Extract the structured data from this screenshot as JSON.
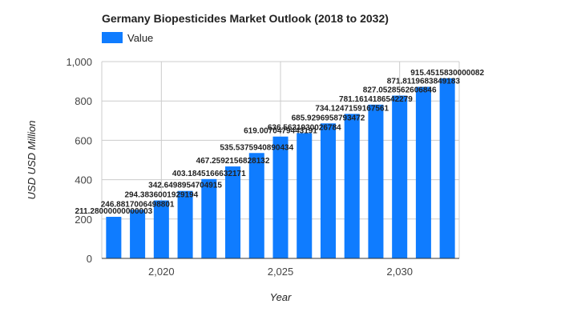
{
  "chart_data": {
    "type": "bar",
    "title": "Germany Biopesticides Market Outlook (2018 to 2032)",
    "xlabel": "Year",
    "ylabel": "USD USD Million",
    "legend": {
      "position": "top-left",
      "entries": [
        "Value"
      ]
    },
    "grid": true,
    "ylim": [
      0,
      1000
    ],
    "yticks": [
      "0",
      "200",
      "400",
      "600",
      "800",
      "1,000"
    ],
    "yticks_values": [
      0,
      200,
      400,
      600,
      800,
      1000
    ],
    "xticks": [
      "2,020",
      "2,025",
      "2,030"
    ],
    "xticks_values": [
      2020,
      2025,
      2030
    ],
    "series": [
      {
        "name": "Value",
        "color": "#0f7cff",
        "x": [
          2018,
          2019,
          2020,
          2021,
          2022,
          2023,
          2024,
          2025,
          2026,
          2027,
          2028,
          2029,
          2030,
          2031,
          2032
        ],
        "values": [
          211.28,
          246.8817006498801,
          294.3836001929194,
          342.6498954704915,
          403.1845166632171,
          467.2592156828132,
          535.5375940890434,
          619.0070479443191,
          636.5631930026784,
          685.9296958793472,
          734.1247159167561,
          781.1614186542279,
          827.0528562606846,
          871.8119683849183,
          915.4515830000082
        ],
        "labels": [
          "211.28000000000003",
          "246.8817006498801",
          "294.3836001929194",
          "342.6498954704915",
          "403.1845166632171",
          "467.2592156828132",
          "535.5375940890434",
          "619.0070479443191",
          "636.5631930026784",
          "685.9296958793472",
          "734.1247159167561",
          "781.1614186542279",
          "827.0528562606846",
          "871.8119683849183",
          "915.4515830000082"
        ]
      }
    ]
  }
}
